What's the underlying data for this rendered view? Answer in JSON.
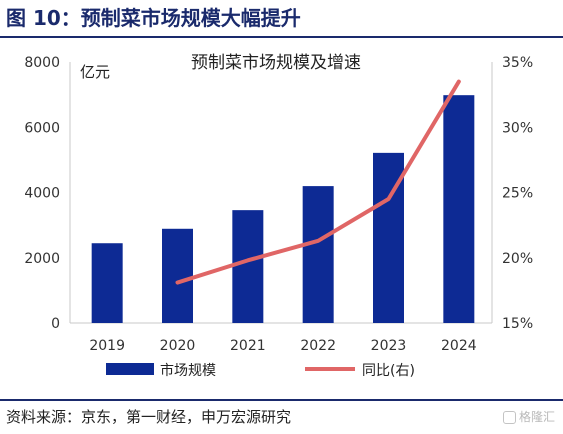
{
  "figure_title": "图 10：预制菜市场规模大幅提升",
  "source": "资料来源：京东，第一财经，申万宏源研究",
  "watermark": "格隆汇",
  "chart_data": {
    "type": "bar",
    "title": "预制菜市场规模及增速",
    "categories": [
      "2019",
      "2020",
      "2021",
      "2022",
      "2023",
      "2024"
    ],
    "ylabel": "亿元",
    "ylim": [
      0,
      8000
    ],
    "yticks": [
      0,
      2000,
      4000,
      6000,
      8000
    ],
    "y2lim": [
      15,
      35
    ],
    "y2ticks": [
      "15%",
      "20%",
      "25%",
      "30%",
      "35%"
    ],
    "series": [
      {
        "name": "市场规模",
        "type": "bar",
        "axis": "left",
        "color": "#0d2a94",
        "values": [
          2445,
          2888,
          3459,
          4196,
          5215,
          6983
        ]
      },
      {
        "name": "同比(右)",
        "type": "line",
        "axis": "right",
        "color": "#e06666",
        "values": [
          null,
          18.1,
          19.8,
          21.3,
          24.5,
          33.5
        ]
      }
    ],
    "grid": false,
    "legend": "bottom"
  }
}
